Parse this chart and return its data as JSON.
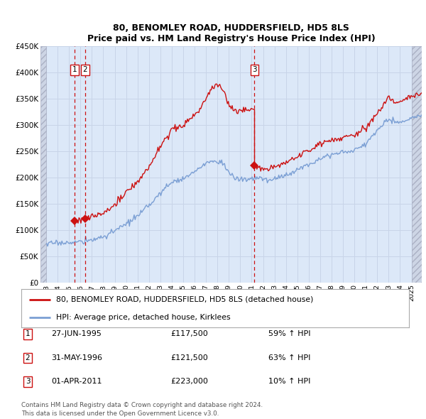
{
  "title1": "80, BENOMLEY ROAD, HUDDERSFIELD, HD5 8LS",
  "title2": "Price paid vs. HM Land Registry's House Price Index (HPI)",
  "legend_line1": "80, BENOMLEY ROAD, HUDDERSFIELD, HD5 8LS (detached house)",
  "legend_line2": "HPI: Average price, detached house, Kirklees",
  "transactions": [
    {
      "num": 1,
      "date": "27-JUN-1995",
      "price": 117500,
      "pct": "59%",
      "dir": "↑"
    },
    {
      "num": 2,
      "date": "31-MAY-1996",
      "price": 121500,
      "pct": "63%",
      "dir": "↑"
    },
    {
      "num": 3,
      "date": "01-APR-2011",
      "price": 223000,
      "pct": "10%",
      "dir": "↑"
    }
  ],
  "transaction_dates_dec": [
    1995.49,
    1996.42,
    2011.25
  ],
  "transaction_prices": [
    117500,
    121500,
    223000
  ],
  "hpi_line_color": "#7b9fd4",
  "price_line_color": "#cc1111",
  "dot_color": "#cc1111",
  "vline_color": "#cc1111",
  "grid_color": "#c8d4e8",
  "bg_color": "#dce8f8",
  "fig_bg": "#ffffff",
  "ylim": [
    0,
    450000
  ],
  "yticks": [
    0,
    50000,
    100000,
    150000,
    200000,
    250000,
    300000,
    350000,
    400000,
    450000
  ],
  "footer": "Contains HM Land Registry data © Crown copyright and database right 2024.\nThis data is licensed under the Open Government Licence v3.0.",
  "start_year": 1993,
  "end_year": 2025
}
